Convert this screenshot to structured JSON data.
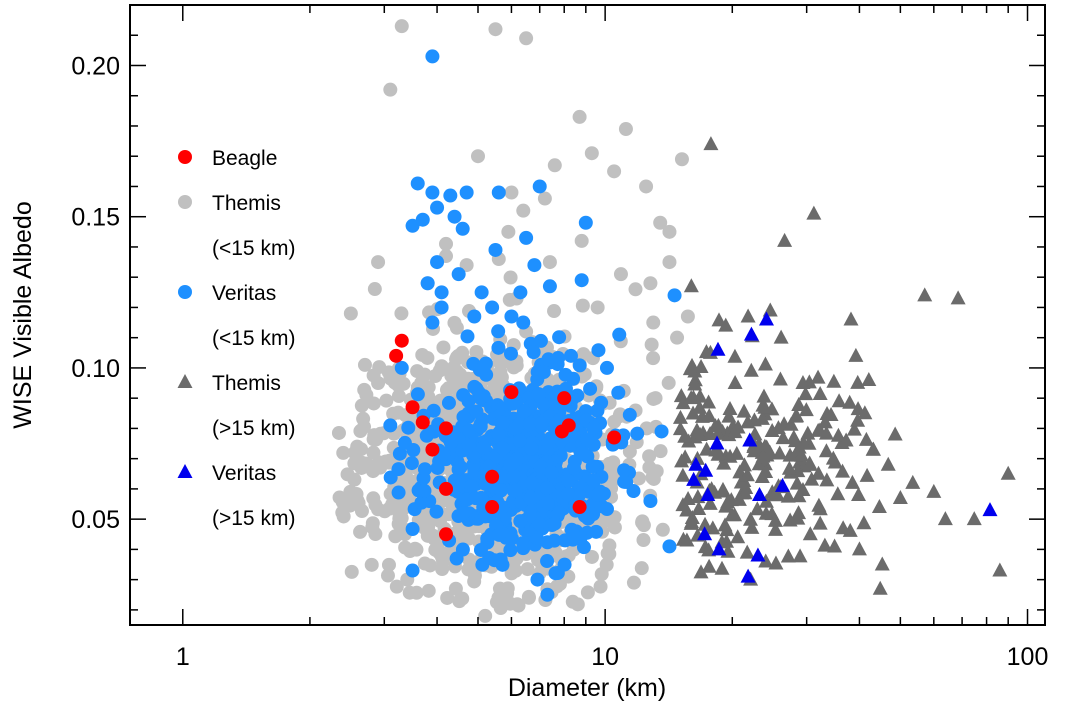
{
  "chart_data": {
    "type": "scatter",
    "xlabel": "Diameter (km)",
    "ylabel": "WISE Visible Albedo",
    "xscale": "log",
    "xlim": [
      0.75,
      110
    ],
    "ylim": [
      0.015,
      0.22
    ],
    "x_ticks": [
      {
        "value": 1,
        "label": "1"
      },
      {
        "value": 10,
        "label": "10"
      },
      {
        "value": 100,
        "label": "100"
      }
    ],
    "y_ticks": [
      {
        "value": 0.05,
        "label": "0.05"
      },
      {
        "value": 0.1,
        "label": "0.10"
      },
      {
        "value": 0.15,
        "label": "0.15"
      },
      {
        "value": 0.2,
        "label": "0.20"
      }
    ],
    "legend": [
      {
        "series": "themis_small",
        "lines": [
          "Themis",
          "(<15 km)"
        ],
        "marker": "circle",
        "color": "#c0c0c0"
      },
      {
        "series": "veritas_small",
        "lines": [
          "Veritas",
          "(<15 km)"
        ],
        "marker": "circle",
        "color": "#1e90ff"
      },
      {
        "series": "themis_large",
        "lines": [
          "Themis",
          "(>15 km)"
        ],
        "marker": "triangle",
        "color": "#6b6b6b"
      },
      {
        "series": "veritas_large",
        "lines": [
          "Veritas",
          "(>15 km)"
        ],
        "marker": "triangle",
        "color": "#0000ee"
      },
      {
        "series": "beagle",
        "lines": [
          "Beagle"
        ],
        "marker": "circle",
        "color": "#ff0000"
      }
    ],
    "series": [
      {
        "name": "Themis (<15 km)",
        "id": "themis_small",
        "marker": "circle",
        "color": "#c0c0c0",
        "cloud": {
          "count": 1100,
          "center_log10_d": 0.74,
          "spread_log10_d": 0.16,
          "center_albedo": 0.068,
          "spread_albedo": 0.02,
          "x_range": [
            2.3,
            15
          ],
          "y_range": [
            0.02,
            0.13
          ],
          "seed": 11
        },
        "points": [
          [
            3.3,
            0.213
          ],
          [
            5.5,
            0.212
          ],
          [
            6.5,
            0.209
          ],
          [
            3.1,
            0.192
          ],
          [
            8.7,
            0.183
          ],
          [
            11.2,
            0.179
          ],
          [
            7.6,
            0.167
          ],
          [
            5.0,
            0.17
          ],
          [
            9.3,
            0.171
          ],
          [
            10.5,
            0.165
          ],
          [
            12.5,
            0.16
          ],
          [
            15.2,
            0.169
          ],
          [
            6.4,
            0.152
          ],
          [
            7.2,
            0.156
          ],
          [
            4.2,
            0.141
          ],
          [
            3.8,
            0.128
          ],
          [
            5.9,
            0.145
          ],
          [
            13.5,
            0.148
          ],
          [
            14.2,
            0.145
          ],
          [
            6.0,
            0.158
          ],
          [
            14.2,
            0.135
          ],
          [
            13.0,
            0.115
          ],
          [
            14.8,
            0.11
          ],
          [
            15.7,
            0.117
          ],
          [
            2.5,
            0.118
          ],
          [
            2.7,
            0.101
          ],
          [
            2.9,
            0.095
          ],
          [
            8.2,
            0.038
          ],
          [
            11.7,
            0.029
          ],
          [
            5.2,
            0.018
          ],
          [
            3.4,
            0.03
          ],
          [
            6.6,
            0.024
          ],
          [
            4.2,
            0.137
          ],
          [
            2.9,
            0.135
          ],
          [
            4.7,
            0.134
          ],
          [
            5.6,
            0.136
          ],
          [
            9.6,
            0.12
          ],
          [
            10.9,
            0.131
          ],
          [
            11.8,
            0.126
          ],
          [
            12.8,
            0.128
          ],
          [
            8.8,
            0.142
          ],
          [
            7.4,
            0.135
          ]
        ]
      },
      {
        "name": "Veritas (<15 km)",
        "id": "veritas_small",
        "marker": "circle",
        "color": "#1e90ff",
        "cloud": {
          "count": 600,
          "center_log10_d": 0.79,
          "spread_log10_d": 0.11,
          "center_albedo": 0.068,
          "spread_albedo": 0.016,
          "x_range": [
            3.0,
            15
          ],
          "y_range": [
            0.03,
            0.115
          ],
          "seed": 23
        },
        "points": [
          [
            3.9,
            0.203
          ],
          [
            3.6,
            0.161
          ],
          [
            3.9,
            0.158
          ],
          [
            4.3,
            0.157
          ],
          [
            4.7,
            0.158
          ],
          [
            5.6,
            0.158
          ],
          [
            7.0,
            0.16
          ],
          [
            3.5,
            0.147
          ],
          [
            4.0,
            0.153
          ],
          [
            4.4,
            0.15
          ],
          [
            4.6,
            0.146
          ],
          [
            3.7,
            0.149
          ],
          [
            6.8,
            0.134
          ],
          [
            9.0,
            0.148
          ],
          [
            5.5,
            0.139
          ],
          [
            6.5,
            0.143
          ],
          [
            4.0,
            0.135
          ],
          [
            3.8,
            0.128
          ],
          [
            4.1,
            0.125
          ],
          [
            4.5,
            0.131
          ],
          [
            5.1,
            0.125
          ],
          [
            5.4,
            0.12
          ],
          [
            6.3,
            0.125
          ],
          [
            7.4,
            0.127
          ],
          [
            6.0,
            0.117
          ],
          [
            8.8,
            0.129
          ],
          [
            4.1,
            0.12
          ],
          [
            3.9,
            0.115
          ],
          [
            4.9,
            0.117
          ],
          [
            6.4,
            0.115
          ],
          [
            14.6,
            0.124
          ],
          [
            10.8,
            0.111
          ],
          [
            3.1,
            0.081
          ],
          [
            13.6,
            0.079
          ],
          [
            14.2,
            0.041
          ],
          [
            7.3,
            0.025
          ],
          [
            3.5,
            0.033
          ],
          [
            9.6,
            0.058
          ],
          [
            12.8,
            0.056
          ],
          [
            10.1,
            0.1
          ],
          [
            3.3,
            0.1
          ],
          [
            8.3,
            0.104
          ]
        ]
      },
      {
        "name": "Themis (>15 km)",
        "id": "themis_large",
        "marker": "triangle",
        "color": "#6b6b6b",
        "cloud": {
          "count": 210,
          "center_log10_d": 1.3,
          "spread_log10_d": 0.14,
          "center_albedo": 0.072,
          "spread_albedo": 0.018,
          "x_range": [
            15,
            45
          ],
          "y_range": [
            0.03,
            0.12
          ],
          "seed": 37
        },
        "points": [
          [
            17.8,
            0.174
          ],
          [
            31.2,
            0.151
          ],
          [
            26.6,
            0.142
          ],
          [
            16.0,
            0.127
          ],
          [
            57.1,
            0.124
          ],
          [
            68.5,
            0.123
          ],
          [
            38.2,
            0.116
          ],
          [
            42.1,
            0.096
          ],
          [
            48.6,
            0.078
          ],
          [
            53.5,
            0.062
          ],
          [
            60.0,
            0.059
          ],
          [
            90.0,
            0.065
          ],
          [
            86.0,
            0.033
          ],
          [
            44.8,
            0.027
          ],
          [
            45.3,
            0.035
          ],
          [
            63.9,
            0.05
          ],
          [
            74.8,
            0.05
          ],
          [
            41.2,
            0.085
          ],
          [
            34.7,
            0.07
          ],
          [
            38.5,
            0.062
          ],
          [
            44.6,
            0.054
          ],
          [
            39.8,
            0.058
          ],
          [
            50.0,
            0.057
          ],
          [
            36.6,
            0.047
          ],
          [
            40.0,
            0.04
          ],
          [
            30.6,
            0.045
          ],
          [
            33.2,
            0.082
          ],
          [
            29.4,
            0.095
          ],
          [
            43.1,
            0.073
          ],
          [
            46.8,
            0.068
          ],
          [
            37.2,
            0.076
          ],
          [
            35.8,
            0.089
          ],
          [
            32.0,
            0.065
          ],
          [
            28.7,
            0.052
          ],
          [
            27.4,
            0.071
          ],
          [
            22.1,
            0.03
          ],
          [
            24.0,
            0.036
          ],
          [
            20.6,
            0.044
          ],
          [
            26.1,
            0.11
          ],
          [
            24.6,
            0.119
          ],
          [
            21.8,
            0.117
          ],
          [
            19.3,
            0.114
          ]
        ]
      },
      {
        "name": "Veritas (>15 km)",
        "id": "veritas_large",
        "marker": "triangle",
        "color": "#0000ee",
        "points": [
          [
            24.1,
            0.116
          ],
          [
            22.2,
            0.111
          ],
          [
            18.5,
            0.106
          ],
          [
            18.4,
            0.075
          ],
          [
            22.0,
            0.076
          ],
          [
            17.3,
            0.066
          ],
          [
            16.4,
            0.068
          ],
          [
            16.2,
            0.063
          ],
          [
            17.5,
            0.058
          ],
          [
            23.2,
            0.058
          ],
          [
            26.3,
            0.061
          ],
          [
            81.5,
            0.053
          ],
          [
            17.2,
            0.045
          ],
          [
            18.6,
            0.04
          ],
          [
            23.0,
            0.038
          ],
          [
            21.8,
            0.031
          ]
        ]
      },
      {
        "name": "Beagle",
        "id": "beagle",
        "marker": "circle",
        "color": "#ff0000",
        "points": [
          [
            3.3,
            0.109
          ],
          [
            3.2,
            0.104
          ],
          [
            3.5,
            0.087
          ],
          [
            3.7,
            0.082
          ],
          [
            3.9,
            0.073
          ],
          [
            4.2,
            0.08
          ],
          [
            4.2,
            0.06
          ],
          [
            4.2,
            0.045
          ],
          [
            5.4,
            0.064
          ],
          [
            5.4,
            0.054
          ],
          [
            6.0,
            0.092
          ],
          [
            7.9,
            0.079
          ],
          [
            8.2,
            0.081
          ],
          [
            8.0,
            0.09
          ],
          [
            8.7,
            0.054
          ],
          [
            10.5,
            0.077
          ]
        ]
      }
    ]
  }
}
